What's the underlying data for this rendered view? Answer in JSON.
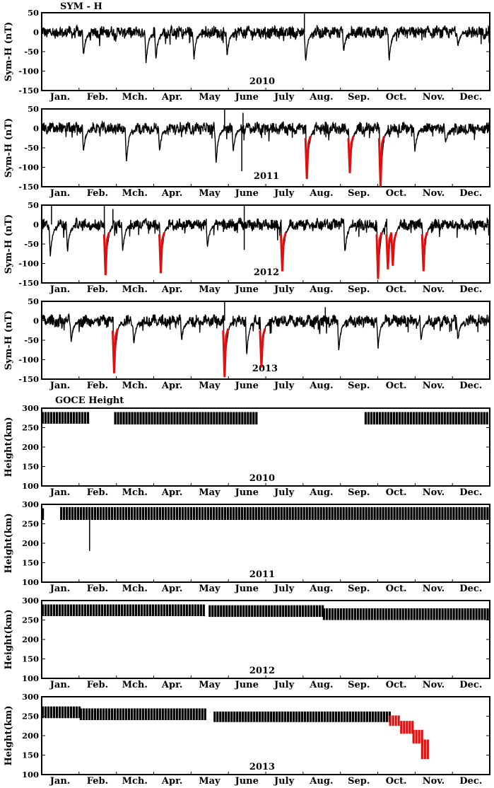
{
  "figure": {
    "symh_title": "SYM - H",
    "goce_title": "GOCE Height",
    "months": [
      "Jan.",
      "Feb.",
      "Mch.",
      "Apr.",
      "May",
      "June",
      "July",
      "Aug.",
      "Sep.",
      "Oct.",
      "Nov.",
      "Dec."
    ],
    "symh_ylabel": "Sym-H (nT)",
    "goce_ylabel": "Height(km)"
  },
  "chart_data": [
    {
      "type": "line",
      "group": "symh",
      "year": "2010",
      "ylim": [
        -150,
        50
      ],
      "yticks": [
        50,
        0,
        -50,
        -100,
        -150
      ],
      "baseline": 0,
      "storms": [
        {
          "day": 35,
          "value": -60,
          "red": false
        },
        {
          "day": 86,
          "value": -80,
          "red": false
        },
        {
          "day": 94,
          "value": -70,
          "red": false
        },
        {
          "day": 125,
          "value": -70,
          "red": false
        },
        {
          "day": 152,
          "value": -60,
          "red": false
        },
        {
          "day": 216,
          "value": -80,
          "red": false
        },
        {
          "day": 247,
          "value": -50,
          "red": false
        },
        {
          "day": 284,
          "value": -75,
          "red": false
        },
        {
          "day": 340,
          "value": -35,
          "red": false
        }
      ],
      "spikes": [
        {
          "day": 215,
          "value": 48
        }
      ]
    },
    {
      "type": "line",
      "group": "symh",
      "year": "2011",
      "ylim": [
        -150,
        50
      ],
      "yticks": [
        50,
        0,
        -50,
        -100,
        -150
      ],
      "baseline": 0,
      "storms": [
        {
          "day": 35,
          "value": -60,
          "red": false
        },
        {
          "day": 70,
          "value": -90,
          "red": false
        },
        {
          "day": 97,
          "value": -60,
          "red": false
        },
        {
          "day": 143,
          "value": -90,
          "red": false
        },
        {
          "day": 157,
          "value": -60,
          "red": false
        },
        {
          "day": 217,
          "value": -130,
          "red": true
        },
        {
          "day": 252,
          "value": -115,
          "red": true
        },
        {
          "day": 277,
          "value": -150,
          "red": true
        },
        {
          "day": 305,
          "value": -60,
          "red": false
        },
        {
          "day": 330,
          "value": -40,
          "red": false
        }
      ],
      "spikes": [
        {
          "day": 150,
          "value": 48
        },
        {
          "day": 165,
          "value": 40
        },
        {
          "day": 164,
          "value": -110
        }
      ]
    },
    {
      "type": "line",
      "group": "symh",
      "year": "2012",
      "ylim": [
        -150,
        50
      ],
      "yticks": [
        50,
        0,
        -50,
        -100,
        -150
      ],
      "baseline": 0,
      "storms": [
        {
          "day": 8,
          "value": -85,
          "red": false
        },
        {
          "day": 22,
          "value": -70,
          "red": false
        },
        {
          "day": 53,
          "value": -130,
          "red": true
        },
        {
          "day": 67,
          "value": -70,
          "red": false
        },
        {
          "day": 98,
          "value": -125,
          "red": true
        },
        {
          "day": 136,
          "value": -60,
          "red": false
        },
        {
          "day": 197,
          "value": -120,
          "red": true
        },
        {
          "day": 248,
          "value": -75,
          "red": false
        },
        {
          "day": 275,
          "value": -140,
          "red": true
        },
        {
          "day": 283,
          "value": -115,
          "red": true
        },
        {
          "day": 287,
          "value": -105,
          "red": true
        },
        {
          "day": 312,
          "value": -120,
          "red": true
        }
      ],
      "spikes": [
        {
          "day": 9,
          "value": 48
        },
        {
          "day": 52,
          "value": 48
        },
        {
          "day": 59,
          "value": 40
        },
        {
          "day": 166,
          "value": 48
        },
        {
          "day": 166,
          "value": -65
        }
      ]
    },
    {
      "type": "line",
      "group": "symh",
      "year": "2013",
      "ylim": [
        -150,
        50
      ],
      "yticks": [
        50,
        0,
        -50,
        -100,
        -150
      ],
      "baseline": 0,
      "storms": [
        {
          "day": 25,
          "value": -55,
          "red": false
        },
        {
          "day": 60,
          "value": -135,
          "red": true
        },
        {
          "day": 76,
          "value": -60,
          "red": false
        },
        {
          "day": 115,
          "value": -50,
          "red": false
        },
        {
          "day": 150,
          "value": -145,
          "red": true
        },
        {
          "day": 168,
          "value": -90,
          "red": false
        },
        {
          "day": 180,
          "value": -120,
          "red": true
        },
        {
          "day": 243,
          "value": -80,
          "red": false
        },
        {
          "day": 275,
          "value": -70,
          "red": false
        },
        {
          "day": 310,
          "value": -50,
          "red": false
        },
        {
          "day": 340,
          "value": -50,
          "red": false
        }
      ],
      "spikes": [
        {
          "day": 150,
          "value": 48
        },
        {
          "day": 232,
          "value": 35
        }
      ]
    },
    {
      "type": "bar",
      "group": "goce",
      "year": "2010",
      "ylim": [
        100,
        300
      ],
      "yticks": [
        300,
        250,
        200,
        150,
        100
      ],
      "segments": [
        {
          "from": 1,
          "to": 40,
          "low": 260,
          "high": 290
        },
        {
          "from": 60,
          "to": 176,
          "low": 258,
          "high": 290
        },
        {
          "from": 264,
          "to": 365,
          "low": 258,
          "high": 290
        }
      ],
      "red_segments": [],
      "glitches": []
    },
    {
      "type": "bar",
      "group": "goce",
      "year": "2011",
      "ylim": [
        100,
        300
      ],
      "yticks": [
        300,
        250,
        200,
        150,
        100
      ],
      "segments": [
        {
          "from": 1,
          "to": 2,
          "low": 260,
          "high": 290
        },
        {
          "from": 16,
          "to": 365,
          "low": 260,
          "high": 293
        }
      ],
      "red_segments": [],
      "glitches": [
        {
          "day": 40,
          "value": 180
        }
      ]
    },
    {
      "type": "bar",
      "group": "goce",
      "year": "2012",
      "ylim": [
        100,
        300
      ],
      "yticks": [
        300,
        250,
        200,
        150,
        100
      ],
      "segments": [
        {
          "from": 1,
          "to": 134,
          "low": 260,
          "high": 290
        },
        {
          "from": 137,
          "to": 230,
          "low": 258,
          "high": 288
        },
        {
          "from": 230,
          "to": 365,
          "low": 250,
          "high": 280
        }
      ],
      "red_segments": [],
      "glitches": []
    },
    {
      "type": "bar",
      "group": "goce",
      "year": "2013",
      "ylim": [
        100,
        300
      ],
      "yticks": [
        300,
        250,
        200,
        150,
        100
      ],
      "segments": [
        {
          "from": 1,
          "to": 32,
          "low": 245,
          "high": 275
        },
        {
          "from": 32,
          "to": 134,
          "low": 240,
          "high": 270
        },
        {
          "from": 141,
          "to": 284,
          "low": 235,
          "high": 262
        }
      ],
      "red_segments": [
        {
          "from": 284,
          "to": 293,
          "low": 225,
          "high": 252
        },
        {
          "from": 293,
          "to": 303,
          "low": 205,
          "high": 238
        },
        {
          "from": 303,
          "to": 310,
          "low": 180,
          "high": 215
        },
        {
          "from": 310,
          "to": 315,
          "low": 140,
          "high": 190
        }
      ],
      "glitches": []
    }
  ]
}
